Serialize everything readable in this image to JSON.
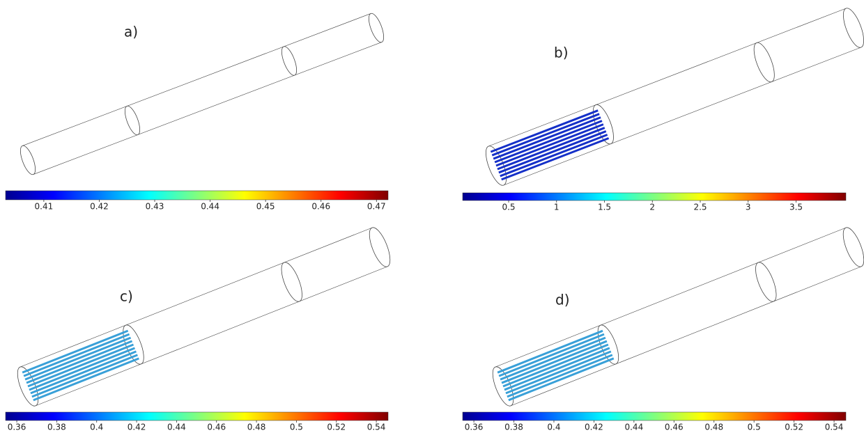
{
  "panels": [
    {
      "label": "a)",
      "colorbar": {
        "range": [
          0.4031,
          0.4721
        ],
        "ticks": [
          0.41,
          0.42,
          0.43,
          0.44,
          0.45,
          0.46,
          0.47
        ]
      }
    },
    {
      "label": "b)",
      "colorbar": {
        "range": [
          0.02,
          4.02
        ],
        "ticks": [
          0.5,
          1,
          1.5,
          2,
          2.5,
          3,
          3.5
        ]
      }
    },
    {
      "label": "c)",
      "colorbar": {
        "range": [
          0.3544,
          0.5459
        ],
        "ticks": [
          0.36,
          0.38,
          0.4,
          0.42,
          0.44,
          0.46,
          0.48,
          0.5,
          0.52,
          0.54
        ]
      }
    },
    {
      "label": "d)",
      "colorbar": {
        "range": [
          0.3544,
          0.5459
        ],
        "ticks": [
          0.36,
          0.38,
          0.4,
          0.42,
          0.44,
          0.46,
          0.48,
          0.5,
          0.52,
          0.54
        ]
      }
    }
  ]
}
